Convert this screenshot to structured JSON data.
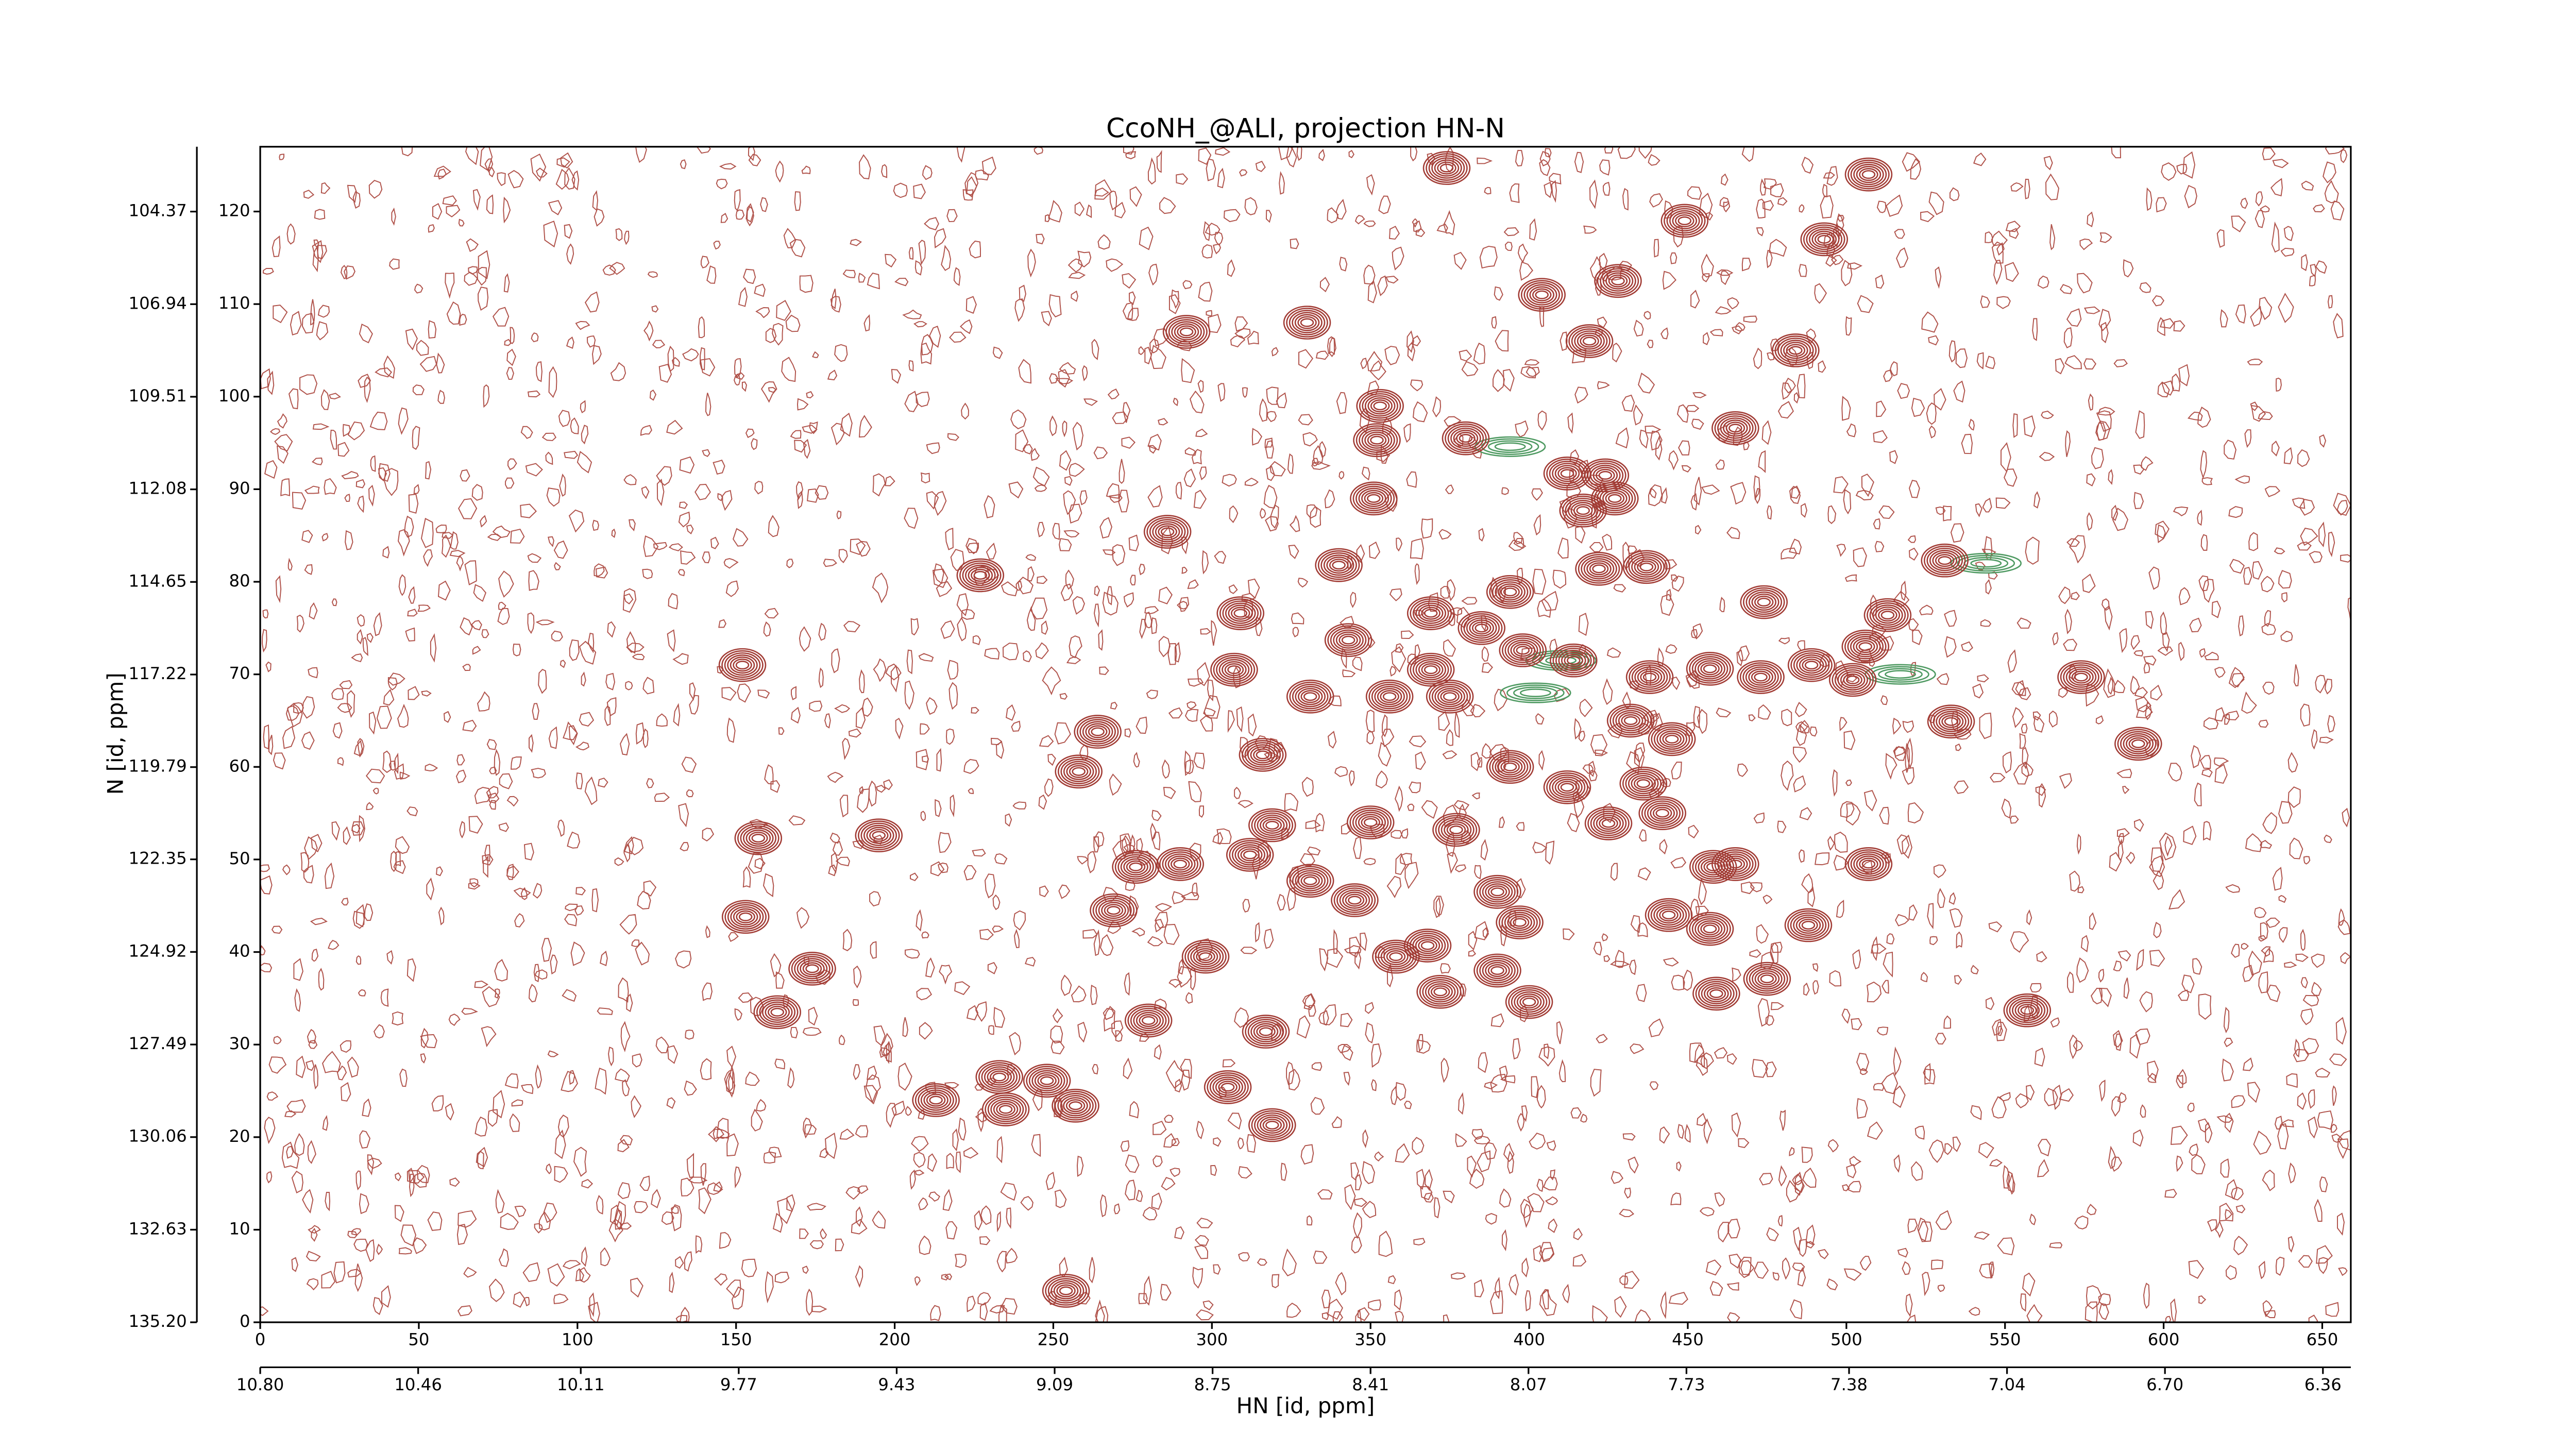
{
  "chart_data": {
    "type": "contour",
    "title": "CcoNH_@ALI, projection HN-N",
    "xlabel": "HN [id, ppm]",
    "ylabel": "N [id, ppm]",
    "xlim": [
      0,
      659
    ],
    "ylim": [
      0,
      127
    ],
    "xticks": [
      0,
      50,
      100,
      150,
      200,
      250,
      300,
      350,
      400,
      450,
      500,
      550,
      600,
      650
    ],
    "yticks": [
      0,
      10,
      20,
      30,
      40,
      50,
      60,
      70,
      80,
      90,
      100,
      110,
      120
    ],
    "x2lim": [
      10.8,
      6.3
    ],
    "x2ticks": [
      {
        "value": 10.8,
        "label": "10.80"
      },
      10.46,
      10.11,
      9.77,
      9.43,
      9.09,
      8.75,
      8.41,
      8.07,
      7.73,
      7.38,
      7.04,
      {
        "value": 6.7,
        "label": "6.70"
      },
      6.36
    ],
    "y2lim": [
      135.2,
      102.57
    ],
    "y2ticks": [
      {
        "value": 135.2,
        "label": "135.20"
      },
      132.63,
      130.06,
      127.49,
      124.92,
      122.35,
      119.79,
      117.22,
      114.65,
      112.08,
      109.51,
      106.94,
      104.37
    ],
    "series": [
      {
        "color": "#4f9a62",
        "x": [
          394,
          402,
          517,
          544,
          410
        ],
        "values": [
          94.6,
          68,
          70,
          82,
          71.5
        ]
      },
      {
        "color": "#a23c35",
        "x": [
          374,
          507,
          449,
          493,
          428,
          404,
          330,
          292,
          419,
          484,
          353,
          352,
          380,
          465,
          412,
          424,
          417,
          427,
          351,
          286,
          340,
          422,
          437,
          531,
          227,
          474,
          394,
          309,
          369,
          385,
          513,
          343,
          398,
          414,
          506,
          152,
          307,
          369,
          438,
          457,
          473,
          489,
          502,
          574,
          331,
          356,
          375,
          432,
          445,
          533,
          264,
          592,
          316,
          258,
          394,
          412,
          436,
          442,
          350,
          425,
          377,
          319,
          195,
          157,
          276,
          290,
          312,
          458,
          465,
          507,
          331,
          345,
          390,
          397,
          269,
          153,
          444,
          457,
          488,
          368,
          298,
          358,
          390,
          174,
          475,
          372,
          459,
          400,
          163,
          280,
          557,
          317,
          233,
          248,
          305,
          235,
          257,
          213,
          319,
          254
        ],
        "values": [
          124.7,
          124,
          119,
          117,
          112.5,
          111,
          108,
          107,
          106,
          105,
          99,
          95.3,
          95.5,
          96.6,
          91.7,
          91.5,
          87.7,
          89,
          89,
          85.4,
          81.8,
          81.4,
          81.6,
          82.3,
          80.7,
          77.8,
          78.9,
          76.6,
          76.6,
          75,
          76.4,
          73.7,
          72.6,
          71.5,
          73,
          71,
          70.5,
          70.5,
          69.7,
          70.6,
          69.7,
          71,
          69.4,
          69.7,
          67.6,
          67.6,
          67.6,
          65,
          63,
          64.9,
          63.8,
          62.5,
          61.3,
          59.5,
          60,
          57.8,
          58.2,
          55,
          54,
          53.9,
          53.2,
          53.7,
          52.6,
          52.3,
          49.2,
          49.5,
          50.5,
          49.2,
          49.5,
          49.5,
          47.7,
          45.6,
          46.5,
          43.2,
          44.5,
          43.8,
          44,
          42.5,
          42.9,
          40.7,
          39.5,
          39.5,
          38,
          38.2,
          37.1,
          35.7,
          35.5,
          34.6,
          33.5,
          32.6,
          33.7,
          31.4,
          26.5,
          26.1,
          25.4,
          23,
          23.4,
          24,
          21.3,
          3.4
        ]
      }
    ]
  }
}
